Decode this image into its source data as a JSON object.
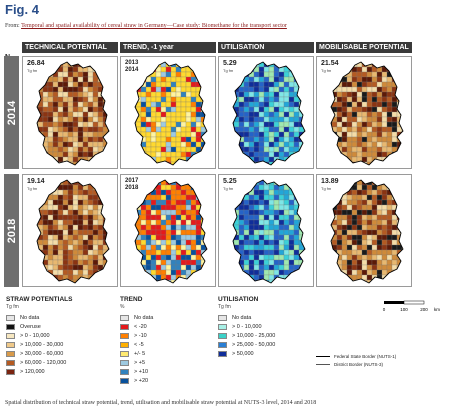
{
  "figure": {
    "title": "Fig. 4",
    "from_prefix": "From: ",
    "from_link": "Temporal and spatial availability of cereal straw in Germany—Case study: Biomethane for the transport sector",
    "compass": "N",
    "caption": "Spatial distribution of technical straw potential, trend, utilisation and mobilisable straw potential at NUTS-3 level, 2014 and 2018"
  },
  "columns": [
    {
      "header": "TECHNICAL POTENTIAL",
      "palette": [
        "#5c1a08",
        "#8b3412",
        "#b45a22",
        "#cf8a3a",
        "#e8b870",
        "#f4dca8"
      ]
    },
    {
      "header": "TREND, -1 year",
      "palette": [
        "#e41a1c",
        "#ff7f00",
        "#ffd92f",
        "#fff4a0",
        "#9ecae1",
        "#3182bd",
        "#08519c"
      ]
    },
    {
      "header": "UTILISATION",
      "palette": [
        "#7fe6e6",
        "#3bd1d8",
        "#22a6d8",
        "#2563c8",
        "#102e9a",
        "#9fe8b0"
      ]
    },
    {
      "header": "MOBILISABLE POTENTIAL",
      "palette": [
        "#5c1a08",
        "#8b3412",
        "#b45a22",
        "#cf8a3a",
        "#e8b870",
        "#f4dca8",
        "#1a1a1a"
      ]
    }
  ],
  "years": [
    {
      "label": "2014",
      "panels": [
        {
          "value": "26.84",
          "unit": "Tg fm",
          "year_from": "",
          "year_to": ""
        },
        {
          "value": "",
          "unit": "",
          "year_from": "2013",
          "year_to": "2014"
        },
        {
          "value": "5.29",
          "unit": "Tg fm",
          "year_from": "",
          "year_to": ""
        },
        {
          "value": "21.54",
          "unit": "Tg fm",
          "year_from": "",
          "year_to": ""
        }
      ]
    },
    {
      "label": "2018",
      "panels": [
        {
          "value": "19.14",
          "unit": "Tg fm",
          "year_from": "",
          "year_to": ""
        },
        {
          "value": "",
          "unit": "",
          "year_from": "2017",
          "year_to": "2018"
        },
        {
          "value": "5.25",
          "unit": "Tg fm",
          "year_from": "",
          "year_to": ""
        },
        {
          "value": "13.89",
          "unit": "Tg fm",
          "year_from": "",
          "year_to": ""
        }
      ]
    }
  ],
  "legends": {
    "straw": {
      "title": "STRAW POTENTIALS",
      "unit": "Tg fm",
      "items": [
        {
          "label": "No data",
          "color": "#e6e6e6"
        },
        {
          "label": "Overuse",
          "color": "#111111"
        },
        {
          "label": "> 0 - 10,000",
          "color": "#f6e7c1"
        },
        {
          "label": "> 10,000 - 30,000",
          "color": "#efc98a"
        },
        {
          "label": "> 30,000 - 60,000",
          "color": "#d89a4a"
        },
        {
          "label": "> 60,000 - 120,000",
          "color": "#b45a22"
        },
        {
          "label": "> 120,000",
          "color": "#7a2410"
        }
      ]
    },
    "trend": {
      "title": "TREND",
      "unit": "%",
      "items": [
        {
          "label": "No data",
          "color": "#e6e6e6"
        },
        {
          "label": "< -20",
          "color": "#e41a1c"
        },
        {
          "label": "> -10",
          "color": "#ff7f00"
        },
        {
          "label": "< -5",
          "color": "#ffb000"
        },
        {
          "label": "+/- 5",
          "color": "#ffea70"
        },
        {
          "label": "> +5",
          "color": "#9ecae1"
        },
        {
          "label": "> +10",
          "color": "#3182bd"
        },
        {
          "label": "> +20",
          "color": "#08519c"
        }
      ]
    },
    "utilisation": {
      "title": "UTILISATION",
      "unit": "Tg fm",
      "items": [
        {
          "label": "No data",
          "color": "#e6e6e6"
        },
        {
          "label": "> 0 - 10,000",
          "color": "#a8f0e6"
        },
        {
          "label": "> 10,000 - 25,000",
          "color": "#3bd1c8"
        },
        {
          "label": "> 25,000 - 50,000",
          "color": "#2a7fd4"
        },
        {
          "label": "> 50,000",
          "color": "#102e9a"
        }
      ]
    },
    "borders": [
      {
        "label": "Federal State Border (NUTS-1)"
      },
      {
        "label": "District Border (NUTS-3)"
      }
    ],
    "scale": {
      "ticks": [
        "0",
        "100",
        "200"
      ],
      "unit": "km"
    }
  }
}
